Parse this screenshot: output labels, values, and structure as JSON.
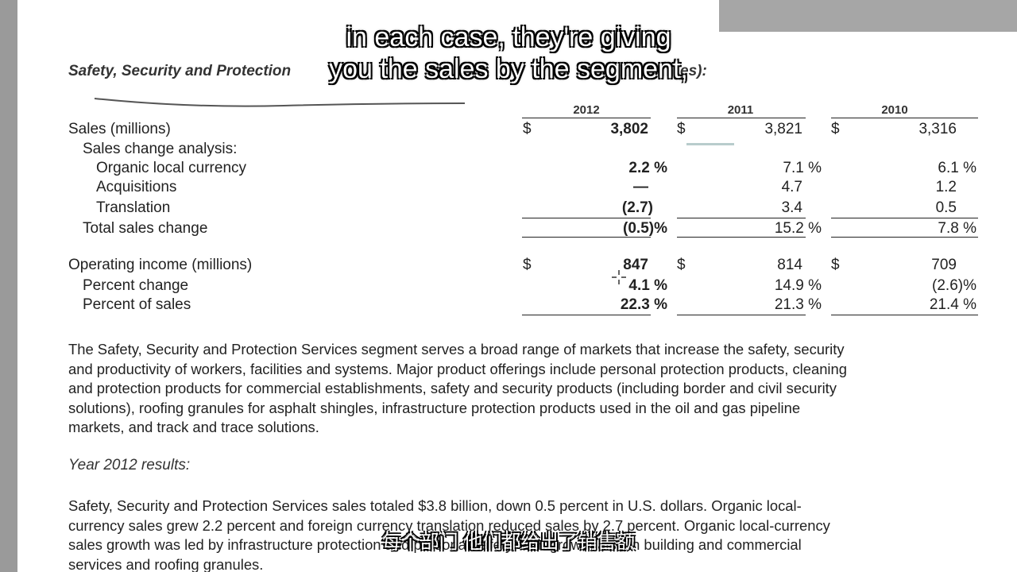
{
  "section": {
    "title_visible": "Safety, Security and Protection",
    "title_tail": "es):"
  },
  "years": [
    "2012",
    "2011",
    "2010"
  ],
  "table": {
    "rows": [
      {
        "label": "Sales (millions)",
        "values": [
          "3,802",
          "3,821",
          "3,316"
        ],
        "dollar": true
      },
      {
        "label": "Sales change analysis:",
        "values": [
          "",
          "",
          ""
        ]
      },
      {
        "label": "Organic local currency",
        "values": [
          "2.2 %",
          "7.1 %",
          "6.1 %"
        ]
      },
      {
        "label": "Acquisitions",
        "values": [
          "—",
          "4.7",
          "1.2"
        ]
      },
      {
        "label": "Translation",
        "values": [
          "(2.7)",
          "3.4",
          "0.5"
        ]
      },
      {
        "label": "Total sales change",
        "values": [
          "(0.5)%",
          "15.2 %",
          "7.8 %"
        ]
      },
      {
        "label": "Operating income (millions)",
        "values": [
          "847",
          "814",
          "709"
        ],
        "dollar": true
      },
      {
        "label": "Percent change",
        "values": [
          "4.1 %",
          "14.9 %",
          "(2.6)%"
        ]
      },
      {
        "label": "Percent of sales",
        "values": [
          "22.3 %",
          "21.3 %",
          "21.4 %"
        ]
      }
    ],
    "currency_symbol": "$"
  },
  "description": {
    "lines": [
      "The Safety, Security and Protection Services segment serves a broad range of markets that increase the safety, security",
      "and productivity of workers, facilities and systems. Major product offerings include personal protection products, cleaning",
      "and protection products for commercial establishments, safety and security products (including border and civil security",
      "solutions), roofing granules for asphalt shingles, infrastructure protection products used in the oil and gas pipeline",
      "markets, and track and trace solutions."
    ]
  },
  "results": {
    "heading": "Year 2012 results:",
    "lines": [
      "Safety, Security and Protection Services sales totaled $3.8 billion, down 0.5 percent in U.S. dollars. Organic local-",
      "currency sales grew 2.2 percent and foreign currency translation reduced sales by 2.7 percent. Organic local-currency",
      "sales growth was led by infrastructure protection and personal safety, with growth also in building and commercial",
      "services and roofing granules."
    ]
  },
  "subtitles": {
    "english_line1": "in each case, they're giving",
    "english_line2": "you the sales by the segment,",
    "chinese": "每个部门 他们都给出了销售额"
  }
}
